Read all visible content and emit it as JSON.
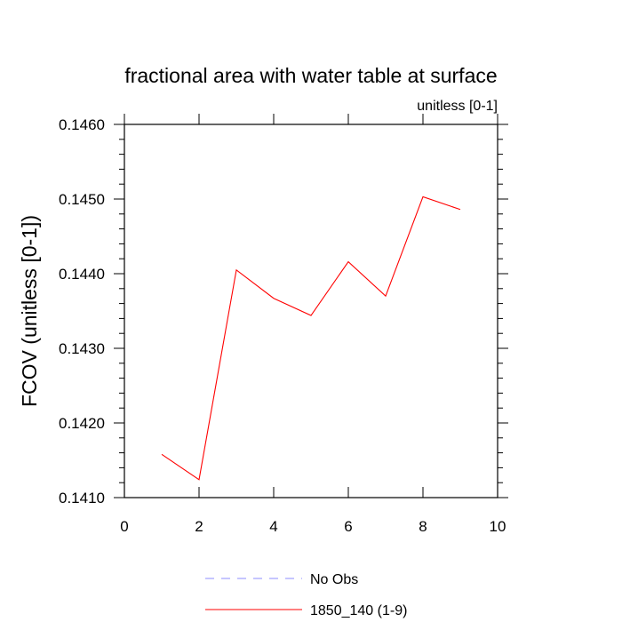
{
  "chart_data": {
    "type": "line",
    "title": "fractional area with water table at surface",
    "subtitle": "unitless [0-1]",
    "ylabel": "FCOV  (unitless [0-1])",
    "xlabel": "",
    "xlim": [
      0,
      10
    ],
    "ylim": [
      0.141,
      0.146
    ],
    "x_ticks": [
      "0",
      "2",
      "4",
      "6",
      "8",
      "10"
    ],
    "y_ticks": [
      "0.1410",
      "0.1420",
      "0.1430",
      "0.1440",
      "0.1450",
      "0.1460"
    ],
    "grid": false,
    "legend_position": "bottom",
    "series": [
      {
        "name": "No Obs",
        "color": "#8c8cff",
        "style": "dashed",
        "x": [],
        "values": []
      },
      {
        "name": "1850_140 (1-9)",
        "color": "#ff0000",
        "style": "solid",
        "x": [
          1,
          2,
          3,
          4,
          5,
          6,
          7,
          8,
          9
        ],
        "values": [
          0.14158,
          0.14124,
          0.14405,
          0.14367,
          0.14344,
          0.14416,
          0.1437,
          0.14503,
          0.14486
        ]
      }
    ]
  }
}
